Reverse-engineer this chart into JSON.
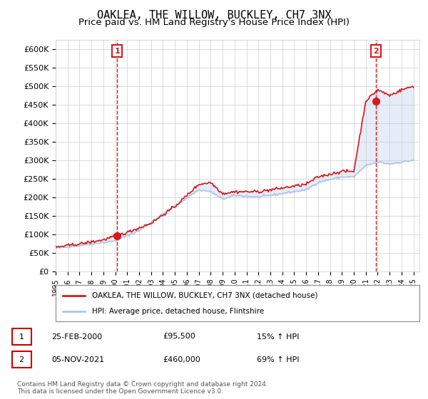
{
  "title": "OAKLEA, THE WILLOW, BUCKLEY, CH7 3NX",
  "subtitle": "Price paid vs. HM Land Registry's House Price Index (HPI)",
  "ylim": [
    0,
    625000
  ],
  "yticks": [
    0,
    50000,
    100000,
    150000,
    200000,
    250000,
    300000,
    350000,
    400000,
    450000,
    500000,
    550000,
    600000
  ],
  "ytick_labels": [
    "£0",
    "£50K",
    "£100K",
    "£150K",
    "£200K",
    "£250K",
    "£300K",
    "£350K",
    "£400K",
    "£450K",
    "£500K",
    "£550K",
    "£600K"
  ],
  "xlim_start": 1995.0,
  "xlim_end": 2025.5,
  "sale1_year": 2000.15,
  "sale1_price": 95500,
  "sale1_label": "1",
  "sale2_year": 2021.85,
  "sale2_price": 460000,
  "sale2_label": "2",
  "hpi_color": "#aec6e8",
  "price_color": "#d7191c",
  "marker_color": "#d7191c",
  "vline_color": "#d7191c",
  "legend_house": "OAKLEA, THE WILLOW, BUCKLEY, CH7 3NX (detached house)",
  "legend_hpi": "HPI: Average price, detached house, Flintshire",
  "table_row1": [
    "1",
    "25-FEB-2000",
    "£95,500",
    "15% ↑ HPI"
  ],
  "table_row2": [
    "2",
    "05-NOV-2021",
    "£460,000",
    "69% ↑ HPI"
  ],
  "footnote": "Contains HM Land Registry data © Crown copyright and database right 2024.\nThis data is licensed under the Open Government Licence v3.0.",
  "bg_color": "#ffffff",
  "grid_color": "#cccccc",
  "title_fontsize": 11,
  "subtitle_fontsize": 9.5
}
